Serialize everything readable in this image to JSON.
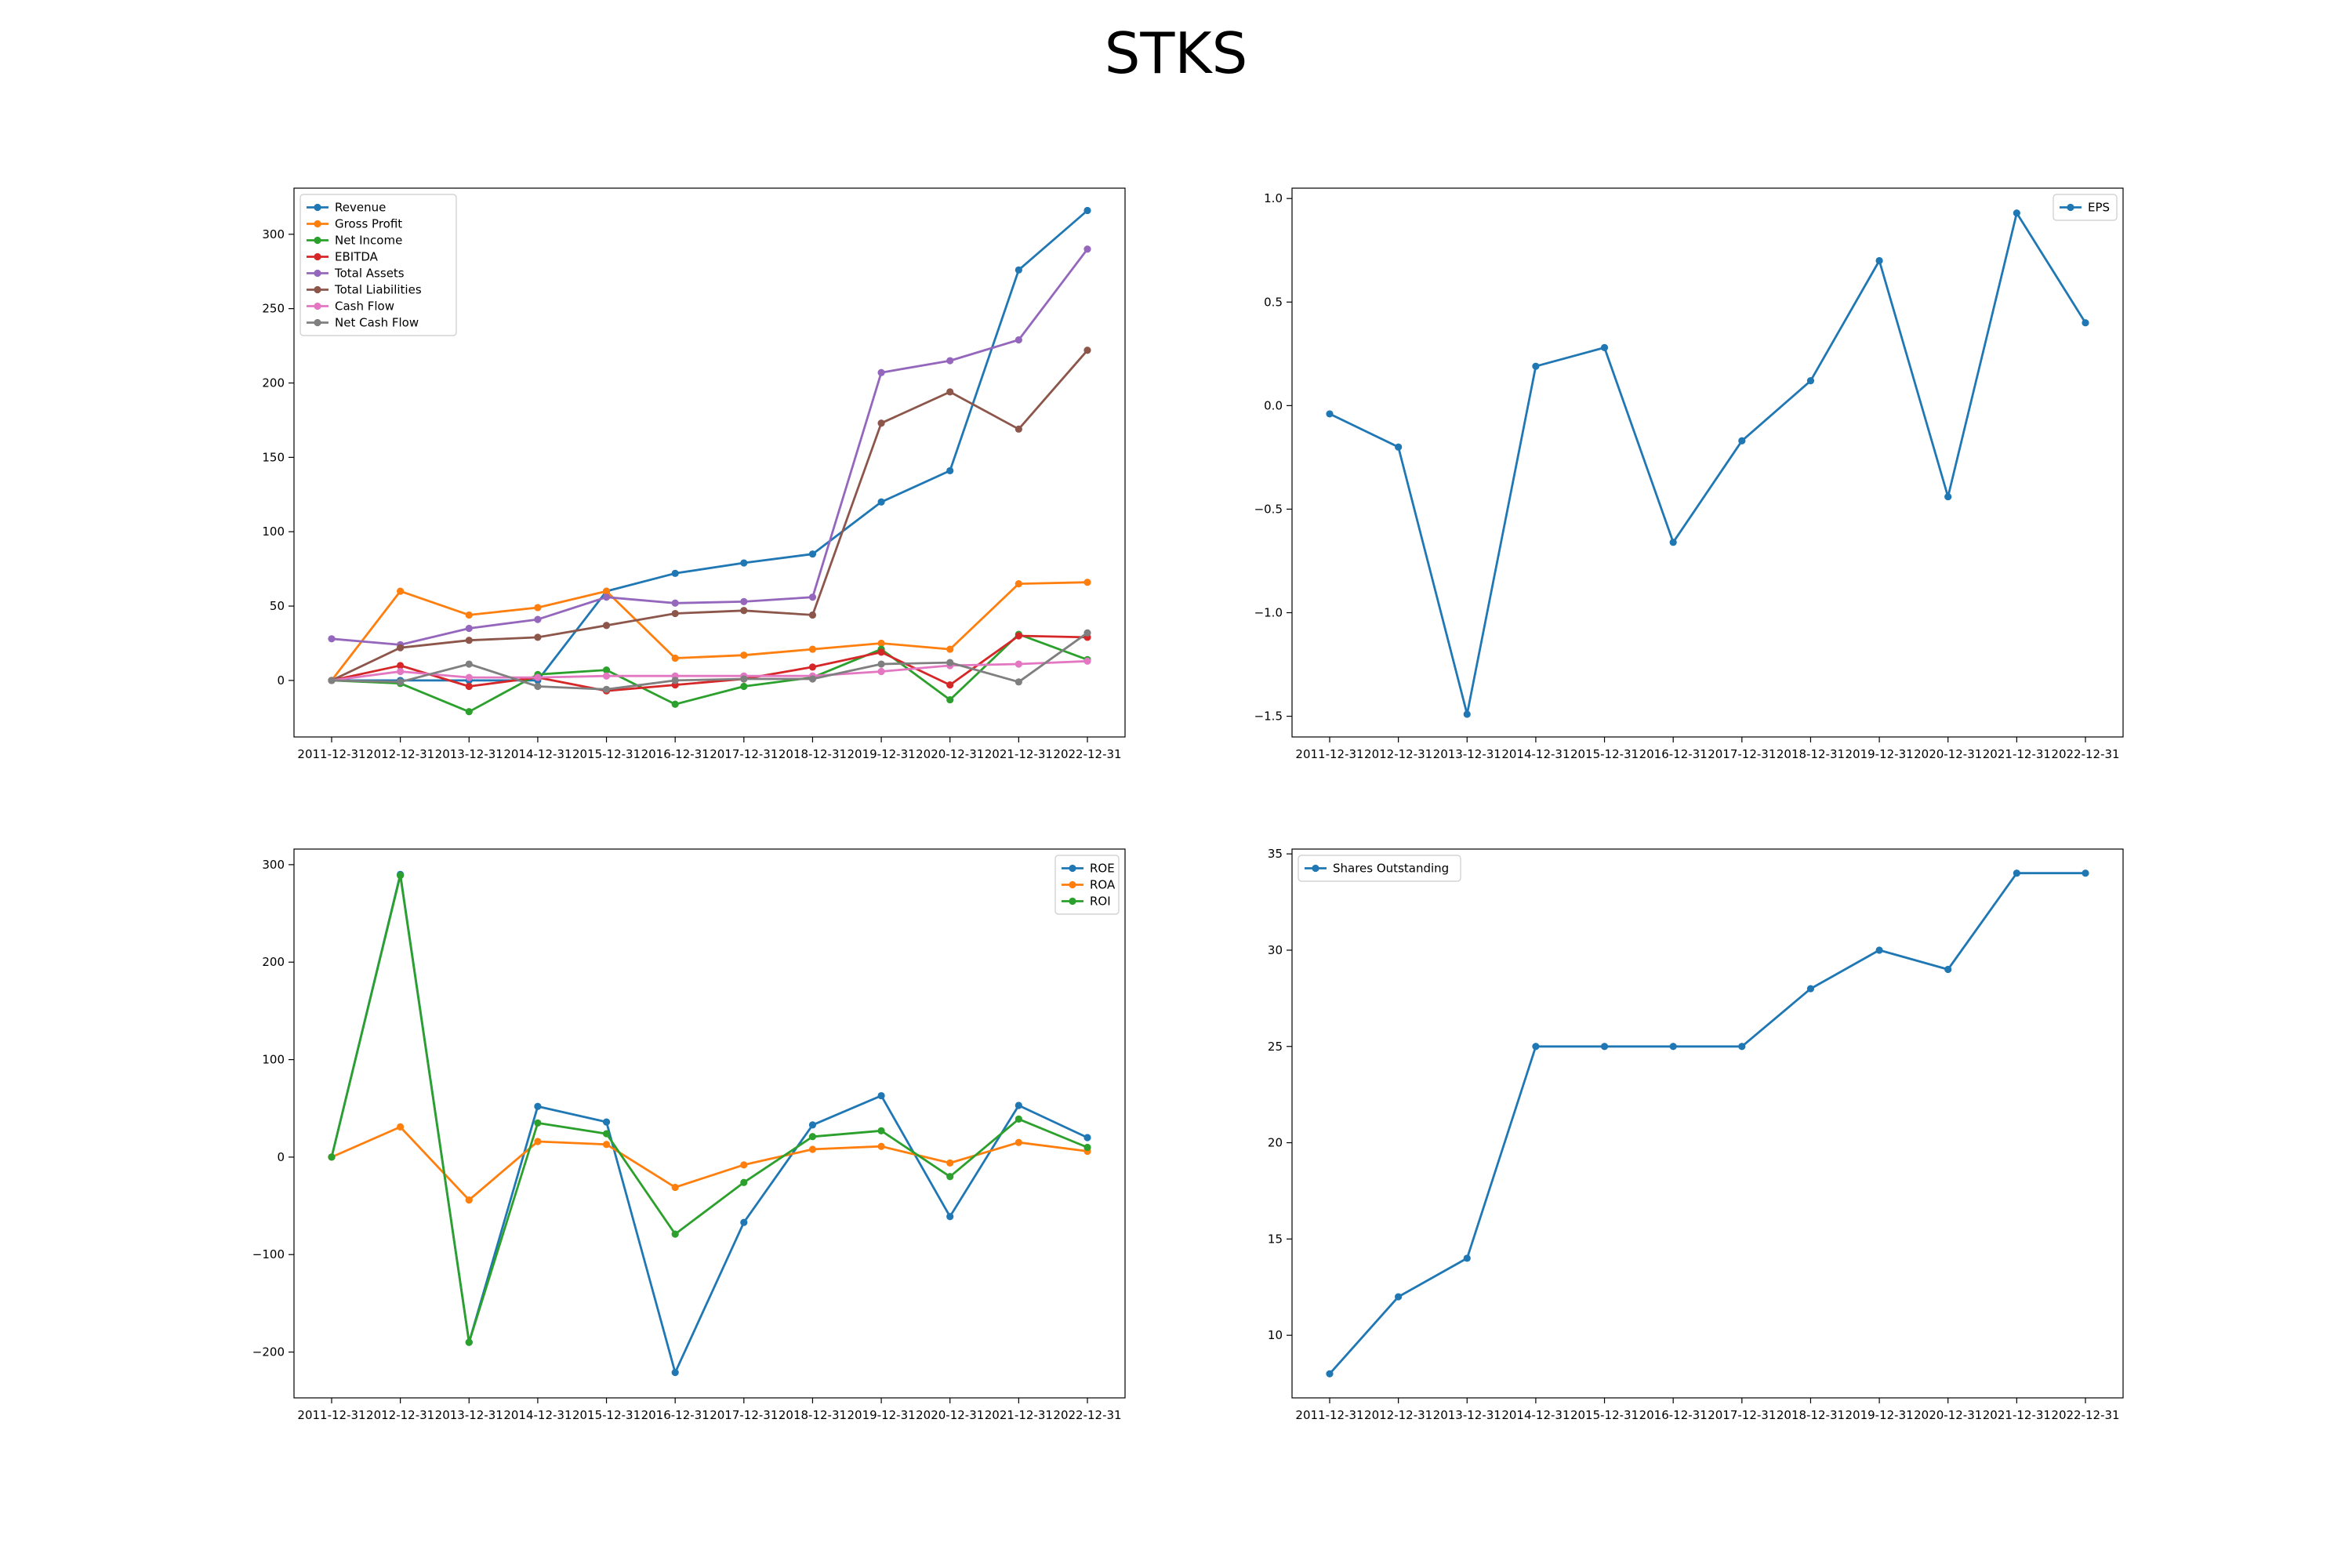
{
  "figure": {
    "title": "STKS"
  },
  "chart_data": [
    {
      "id": "fundamentals",
      "type": "line",
      "categories": [
        "2011-12-31",
        "2012-12-31",
        "2013-12-31",
        "2014-12-31",
        "2015-12-31",
        "2016-12-31",
        "2017-12-31",
        "2018-12-31",
        "2019-12-31",
        "2020-12-31",
        "2021-12-31",
        "2022-12-31"
      ],
      "ylim": [
        -38,
        331
      ],
      "yticks": [
        0,
        50,
        100,
        150,
        200,
        250,
        300
      ],
      "legend": "upper-left",
      "series": [
        {
          "name": "Revenue",
          "color": "#1f77b4",
          "values": [
            0,
            0,
            0,
            0,
            60,
            72,
            79,
            85,
            120,
            141,
            276,
            316
          ]
        },
        {
          "name": "Gross Profit",
          "color": "#ff7f0e",
          "values": [
            0,
            60,
            44,
            49,
            60,
            15,
            17,
            21,
            25,
            21,
            65,
            66
          ]
        },
        {
          "name": "Net Income",
          "color": "#2ca02c",
          "values": [
            0,
            -2,
            -21,
            4,
            7,
            -16,
            -4,
            2,
            21,
            -13,
            31,
            14
          ]
        },
        {
          "name": "EBITDA",
          "color": "#d62728",
          "values": [
            0,
            10,
            -4,
            2,
            -7,
            -3,
            1,
            9,
            19,
            -3,
            30,
            29
          ]
        },
        {
          "name": "Total Assets",
          "color": "#9467bd",
          "values": [
            28,
            24,
            35,
            41,
            56,
            52,
            53,
            56,
            207,
            215,
            229,
            290
          ]
        },
        {
          "name": "Total Liabilities",
          "color": "#8c564b",
          "values": [
            0,
            22,
            27,
            29,
            37,
            45,
            47,
            44,
            173,
            194,
            169,
            222
          ]
        },
        {
          "name": "Cash Flow",
          "color": "#e377c2",
          "values": [
            0,
            6,
            2,
            2,
            3,
            3,
            3,
            3,
            6,
            10,
            11,
            13
          ]
        },
        {
          "name": "Net Cash Flow",
          "color": "#7f7f7f",
          "values": [
            0,
            -1,
            11,
            -4,
            -6,
            0,
            1,
            1,
            11,
            12,
            -1,
            32
          ]
        }
      ]
    },
    {
      "id": "eps",
      "type": "line",
      "categories": [
        "2011-12-31",
        "2012-12-31",
        "2013-12-31",
        "2014-12-31",
        "2015-12-31",
        "2016-12-31",
        "2017-12-31",
        "2018-12-31",
        "2019-12-31",
        "2020-12-31",
        "2021-12-31",
        "2022-12-31"
      ],
      "ylim": [
        -1.6,
        1.05
      ],
      "yticks": [
        -1.5,
        -1.0,
        -0.5,
        0.0,
        0.5,
        1.0
      ],
      "tick_labels": [
        "−1.5",
        "−1.0",
        "−0.5",
        "0.0",
        "0.5",
        "1.0"
      ],
      "legend": "upper-right",
      "series": [
        {
          "name": "EPS",
          "color": "#1f77b4",
          "values": [
            -0.04,
            -0.2,
            -1.49,
            0.19,
            0.28,
            -0.66,
            -0.17,
            0.12,
            0.7,
            -0.44,
            0.93,
            0.4
          ]
        }
      ]
    },
    {
      "id": "returns",
      "type": "line",
      "categories": [
        "2011-12-31",
        "2012-12-31",
        "2013-12-31",
        "2014-12-31",
        "2015-12-31",
        "2016-12-31",
        "2017-12-31",
        "2018-12-31",
        "2019-12-31",
        "2020-12-31",
        "2021-12-31",
        "2022-12-31"
      ],
      "ylim": [
        -247,
        316
      ],
      "yticks": [
        -200,
        -100,
        0,
        100,
        200,
        300
      ],
      "tick_labels": [
        "−200",
        "−100",
        "0",
        "100",
        "200",
        "300"
      ],
      "legend": "upper-right",
      "series": [
        {
          "name": "ROE",
          "color": "#1f77b4",
          "values": [
            0,
            290,
            -190,
            52,
            36,
            -221,
            -67,
            33,
            63,
            -61,
            53,
            20
          ]
        },
        {
          "name": "ROA",
          "color": "#ff7f0e",
          "values": [
            0,
            31,
            -44,
            16,
            13,
            -31,
            -8,
            8,
            11,
            -6,
            15,
            6
          ]
        },
        {
          "name": "ROI",
          "color": "#2ca02c",
          "values": [
            0,
            289,
            -190,
            35,
            24,
            -79,
            -26,
            21,
            27,
            -20,
            39,
            10
          ]
        }
      ]
    },
    {
      "id": "shares",
      "type": "line",
      "categories": [
        "2011-12-31",
        "2012-12-31",
        "2013-12-31",
        "2014-12-31",
        "2015-12-31",
        "2016-12-31",
        "2017-12-31",
        "2018-12-31",
        "2019-12-31",
        "2020-12-31",
        "2021-12-31",
        "2022-12-31"
      ],
      "ylim": [
        6.75,
        35.25
      ],
      "yticks": [
        10,
        15,
        20,
        25,
        30,
        35
      ],
      "legend": "upper-left",
      "series": [
        {
          "name": "Shares Outstanding",
          "color": "#1f77b4",
          "values": [
            8,
            12,
            14,
            25,
            25,
            25,
            25,
            28,
            30,
            29,
            34,
            34
          ]
        }
      ]
    }
  ]
}
